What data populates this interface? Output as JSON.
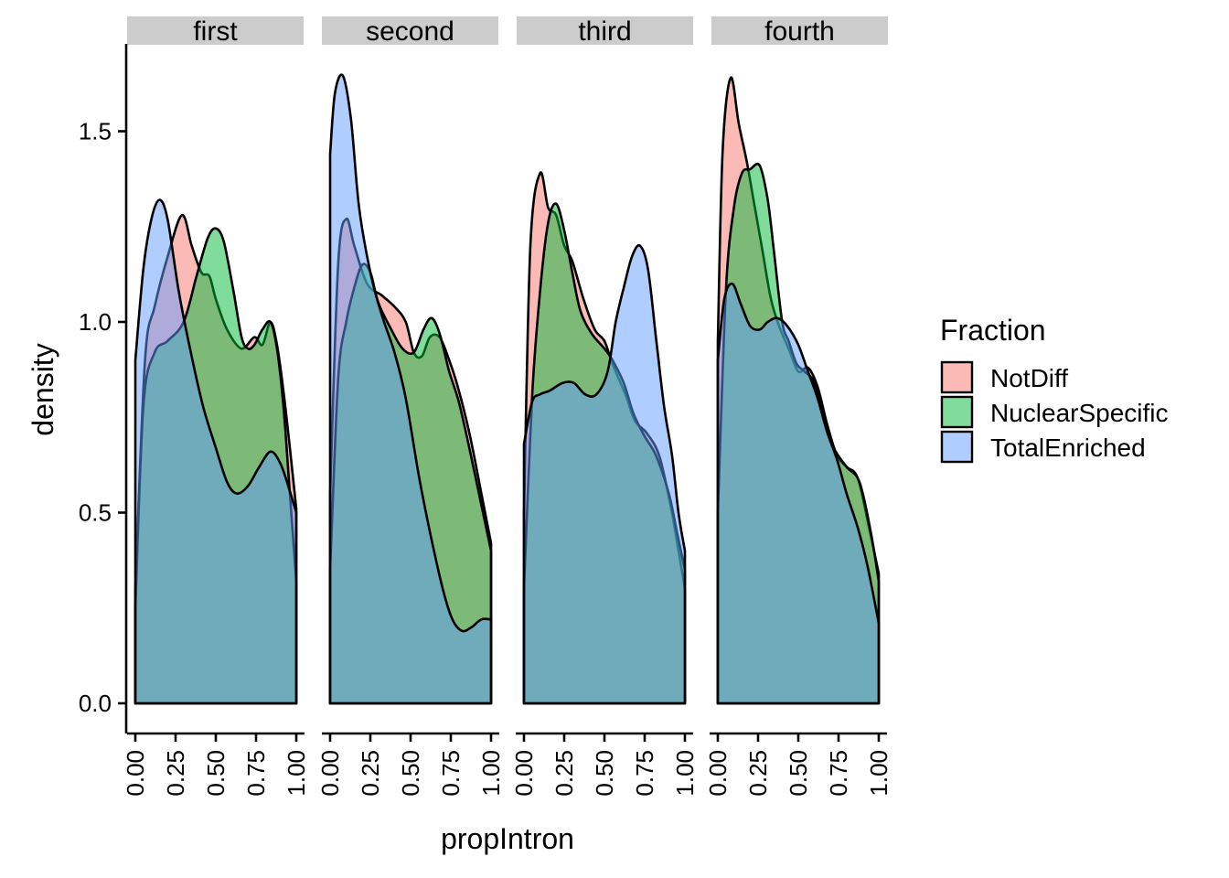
{
  "chart_data": {
    "type": "area",
    "xlabel": "propIntron",
    "ylabel": "density",
    "xlim": [
      0,
      1
    ],
    "ylim": [
      0,
      1.65
    ],
    "x_ticks": [
      "0.00",
      "0.25",
      "0.50",
      "0.75",
      "1.00"
    ],
    "y_ticks": [
      "0.0",
      "0.5",
      "1.0",
      "1.5"
    ],
    "grid": false,
    "legend": {
      "title": "Fraction",
      "placement": "right",
      "entries": [
        "NotDiff",
        "NuclearSpecific",
        "TotalEnriched"
      ]
    },
    "colors": {
      "NotDiff": "#F8766D",
      "NuclearSpecific": "#00BA38",
      "TotalEnriched": "#619CFF"
    },
    "panels": [
      {
        "label": "first",
        "series": [
          {
            "name": "NotDiff",
            "points": [
              [
                0,
                0.3
              ],
              [
                0.06,
                0.9
              ],
              [
                0.12,
                1.04
              ],
              [
                0.2,
                1.17
              ],
              [
                0.29,
                1.28
              ],
              [
                0.35,
                1.2
              ],
              [
                0.41,
                1.13
              ],
              [
                0.46,
                1.12
              ],
              [
                0.5,
                1.06
              ],
              [
                0.57,
                0.98
              ],
              [
                0.66,
                0.93
              ],
              [
                0.74,
                0.96
              ],
              [
                0.79,
                0.94
              ],
              [
                0.84,
                1.0
              ],
              [
                0.88,
                0.94
              ],
              [
                0.92,
                0.82
              ],
              [
                0.96,
                0.67
              ],
              [
                1,
                0.51
              ]
            ]
          },
          {
            "name": "NuclearSpecific",
            "points": [
              [
                0,
                0.25
              ],
              [
                0.05,
                0.78
              ],
              [
                0.12,
                0.92
              ],
              [
                0.2,
                0.95
              ],
              [
                0.3,
                1.0
              ],
              [
                0.38,
                1.12
              ],
              [
                0.45,
                1.22
              ],
              [
                0.5,
                1.245
              ],
              [
                0.55,
                1.21
              ],
              [
                0.61,
                1.08
              ],
              [
                0.66,
                0.96
              ],
              [
                0.7,
                0.93
              ],
              [
                0.74,
                0.94
              ],
              [
                0.79,
                0.98
              ],
              [
                0.84,
                1.0
              ],
              [
                0.88,
                0.93
              ],
              [
                0.92,
                0.78
              ],
              [
                0.96,
                0.55
              ],
              [
                1,
                0.32
              ]
            ]
          },
          {
            "name": "TotalEnriched",
            "points": [
              [
                0,
                0.9
              ],
              [
                0.05,
                1.14
              ],
              [
                0.1,
                1.27
              ],
              [
                0.15,
                1.32
              ],
              [
                0.2,
                1.27
              ],
              [
                0.27,
                1.08
              ],
              [
                0.34,
                0.93
              ],
              [
                0.42,
                0.78
              ],
              [
                0.5,
                0.67
              ],
              [
                0.57,
                0.58
              ],
              [
                0.63,
                0.55
              ],
              [
                0.7,
                0.57
              ],
              [
                0.77,
                0.62
              ],
              [
                0.84,
                0.66
              ],
              [
                0.9,
                0.63
              ],
              [
                0.95,
                0.57
              ],
              [
                1,
                0.5
              ]
            ]
          }
        ]
      },
      {
        "label": "second",
        "series": [
          {
            "name": "NotDiff",
            "points": [
              [
                0,
                0.55
              ],
              [
                0.05,
                1.15
              ],
              [
                0.1,
                1.27
              ],
              [
                0.15,
                1.2
              ],
              [
                0.23,
                1.1
              ],
              [
                0.32,
                1.07
              ],
              [
                0.4,
                1.04
              ],
              [
                0.47,
                1.0
              ],
              [
                0.52,
                0.92
              ],
              [
                0.57,
                0.91
              ],
              [
                0.62,
                0.96
              ],
              [
                0.68,
                0.96
              ],
              [
                0.74,
                0.9
              ],
              [
                0.8,
                0.82
              ],
              [
                0.87,
                0.7
              ],
              [
                0.94,
                0.55
              ],
              [
                1,
                0.42
              ]
            ]
          },
          {
            "name": "NuclearSpecific",
            "points": [
              [
                0,
                0.35
              ],
              [
                0.05,
                0.85
              ],
              [
                0.1,
                1.0
              ],
              [
                0.15,
                1.09
              ],
              [
                0.2,
                1.15
              ],
              [
                0.25,
                1.13
              ],
              [
                0.3,
                1.05
              ],
              [
                0.38,
                0.98
              ],
              [
                0.45,
                0.93
              ],
              [
                0.52,
                0.92
              ],
              [
                0.58,
                0.98
              ],
              [
                0.63,
                1.01
              ],
              [
                0.68,
                0.97
              ],
              [
                0.74,
                0.87
              ],
              [
                0.8,
                0.79
              ],
              [
                0.87,
                0.66
              ],
              [
                0.94,
                0.52
              ],
              [
                1,
                0.4
              ]
            ]
          },
          {
            "name": "TotalEnriched",
            "points": [
              [
                0,
                1.44
              ],
              [
                0.03,
                1.6
              ],
              [
                0.08,
                1.645
              ],
              [
                0.13,
                1.53
              ],
              [
                0.18,
                1.3
              ],
              [
                0.25,
                1.13
              ],
              [
                0.32,
                1.02
              ],
              [
                0.4,
                0.92
              ],
              [
                0.47,
                0.8
              ],
              [
                0.55,
                0.6
              ],
              [
                0.62,
                0.45
              ],
              [
                0.7,
                0.3
              ],
              [
                0.76,
                0.22
              ],
              [
                0.82,
                0.19
              ],
              [
                0.88,
                0.2
              ],
              [
                0.94,
                0.22
              ],
              [
                1,
                0.22
              ]
            ]
          }
        ]
      },
      {
        "label": "third",
        "series": [
          {
            "name": "NotDiff",
            "points": [
              [
                0,
                0.5
              ],
              [
                0.04,
                1.2
              ],
              [
                0.1,
                1.39
              ],
              [
                0.15,
                1.3
              ],
              [
                0.2,
                1.28
              ],
              [
                0.25,
                1.2
              ],
              [
                0.3,
                1.16
              ],
              [
                0.37,
                1.06
              ],
              [
                0.44,
                0.98
              ],
              [
                0.5,
                0.95
              ],
              [
                0.55,
                0.89
              ],
              [
                0.63,
                0.81
              ],
              [
                0.69,
                0.74
              ],
              [
                0.76,
                0.71
              ],
              [
                0.84,
                0.65
              ],
              [
                0.91,
                0.52
              ],
              [
                0.96,
                0.4
              ],
              [
                1,
                0.3
              ]
            ]
          },
          {
            "name": "NuclearSpecific",
            "points": [
              [
                0,
                0.3
              ],
              [
                0.05,
                0.8
              ],
              [
                0.1,
                1.08
              ],
              [
                0.15,
                1.26
              ],
              [
                0.2,
                1.31
              ],
              [
                0.25,
                1.24
              ],
              [
                0.3,
                1.13
              ],
              [
                0.35,
                1.03
              ],
              [
                0.42,
                0.97
              ],
              [
                0.5,
                0.93
              ],
              [
                0.55,
                0.9
              ],
              [
                0.62,
                0.84
              ],
              [
                0.68,
                0.76
              ],
              [
                0.75,
                0.7
              ],
              [
                0.82,
                0.65
              ],
              [
                0.9,
                0.55
              ],
              [
                0.95,
                0.45
              ],
              [
                1,
                0.35
              ]
            ]
          },
          {
            "name": "TotalEnriched",
            "points": [
              [
                0,
                0.68
              ],
              [
                0.05,
                0.79
              ],
              [
                0.1,
                0.81
              ],
              [
                0.16,
                0.82
              ],
              [
                0.24,
                0.84
              ],
              [
                0.31,
                0.84
              ],
              [
                0.38,
                0.81
              ],
              [
                0.45,
                0.81
              ],
              [
                0.52,
                0.87
              ],
              [
                0.57,
                1.0
              ],
              [
                0.62,
                1.09
              ],
              [
                0.67,
                1.17
              ],
              [
                0.72,
                1.2
              ],
              [
                0.77,
                1.14
              ],
              [
                0.82,
                0.96
              ],
              [
                0.87,
                0.78
              ],
              [
                0.92,
                0.65
              ],
              [
                0.96,
                0.5
              ],
              [
                1,
                0.4
              ]
            ]
          }
        ]
      },
      {
        "label": "fourth",
        "series": [
          {
            "name": "NotDiff",
            "points": [
              [
                0,
                0.95
              ],
              [
                0.03,
                1.45
              ],
              [
                0.08,
                1.64
              ],
              [
                0.13,
                1.52
              ],
              [
                0.18,
                1.42
              ],
              [
                0.23,
                1.3
              ],
              [
                0.28,
                1.18
              ],
              [
                0.33,
                1.06
              ],
              [
                0.38,
                0.99
              ],
              [
                0.44,
                0.93
              ],
              [
                0.5,
                0.87
              ],
              [
                0.56,
                0.88
              ],
              [
                0.62,
                0.83
              ],
              [
                0.68,
                0.73
              ],
              [
                0.74,
                0.65
              ],
              [
                0.8,
                0.62
              ],
              [
                0.87,
                0.59
              ],
              [
                0.94,
                0.46
              ],
              [
                1,
                0.34
              ]
            ]
          },
          {
            "name": "NuclearSpecific",
            "points": [
              [
                0,
                0.5
              ],
              [
                0.05,
                1.08
              ],
              [
                0.1,
                1.3
              ],
              [
                0.15,
                1.39
              ],
              [
                0.2,
                1.4
              ],
              [
                0.26,
                1.41
              ],
              [
                0.31,
                1.32
              ],
              [
                0.35,
                1.18
              ],
              [
                0.4,
                1.0
              ],
              [
                0.44,
                0.95
              ],
              [
                0.49,
                0.89
              ],
              [
                0.54,
                0.87
              ],
              [
                0.6,
                0.84
              ],
              [
                0.66,
                0.75
              ],
              [
                0.72,
                0.67
              ],
              [
                0.8,
                0.62
              ],
              [
                0.88,
                0.58
              ],
              [
                0.95,
                0.45
              ],
              [
                1,
                0.32
              ]
            ]
          },
          {
            "name": "TotalEnriched",
            "points": [
              [
                0,
                0.9
              ],
              [
                0.04,
                1.06
              ],
              [
                0.09,
                1.1
              ],
              [
                0.14,
                1.05
              ],
              [
                0.2,
                0.99
              ],
              [
                0.26,
                0.98
              ],
              [
                0.31,
                1.0
              ],
              [
                0.37,
                1.01
              ],
              [
                0.43,
                0.99
              ],
              [
                0.5,
                0.94
              ],
              [
                0.56,
                0.87
              ],
              [
                0.62,
                0.8
              ],
              [
                0.68,
                0.71
              ],
              [
                0.74,
                0.64
              ],
              [
                0.8,
                0.55
              ],
              [
                0.87,
                0.46
              ],
              [
                0.93,
                0.36
              ],
              [
                1,
                0.21
              ]
            ]
          }
        ]
      }
    ]
  }
}
